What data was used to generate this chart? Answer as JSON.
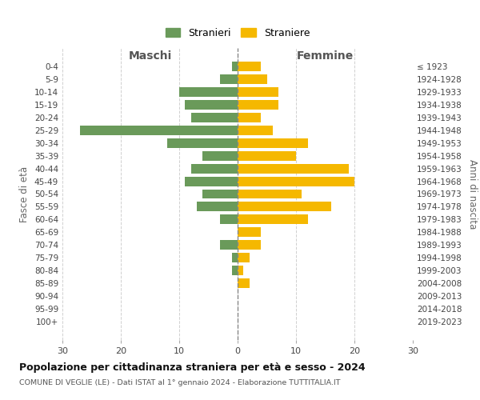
{
  "age_groups": [
    "0-4",
    "5-9",
    "10-14",
    "15-19",
    "20-24",
    "25-29",
    "30-34",
    "35-39",
    "40-44",
    "45-49",
    "50-54",
    "55-59",
    "60-64",
    "65-69",
    "70-74",
    "75-79",
    "80-84",
    "85-89",
    "90-94",
    "95-99",
    "100+"
  ],
  "birth_years": [
    "2019-2023",
    "2014-2018",
    "2009-2013",
    "2004-2008",
    "1999-2003",
    "1994-1998",
    "1989-1993",
    "1984-1988",
    "1979-1983",
    "1974-1978",
    "1969-1973",
    "1964-1968",
    "1959-1963",
    "1954-1958",
    "1949-1953",
    "1944-1948",
    "1939-1943",
    "1934-1938",
    "1929-1933",
    "1924-1928",
    "≤ 1923"
  ],
  "maschi": [
    1,
    3,
    10,
    9,
    8,
    27,
    12,
    6,
    8,
    9,
    6,
    7,
    3,
    0,
    3,
    1,
    1,
    0,
    0,
    0,
    0
  ],
  "femmine": [
    4,
    5,
    7,
    7,
    4,
    6,
    12,
    10,
    19,
    20,
    11,
    16,
    12,
    4,
    4,
    2,
    1,
    2,
    0,
    0,
    0
  ],
  "maschi_color": "#6a9a5a",
  "femmine_color": "#f5b800",
  "title": "Popolazione per cittadinanza straniera per età e sesso - 2024",
  "subtitle": "COMUNE DI VEGLIE (LE) - Dati ISTAT al 1° gennaio 2024 - Elaborazione TUTTITALIA.IT",
  "legend_maschi": "Stranieri",
  "legend_femmine": "Straniere",
  "xlabel_left": "Maschi",
  "xlabel_right": "Femmine",
  "ylabel_left": "Fasce di età",
  "ylabel_right": "Anni di nascita",
  "xlim": 30,
  "background_color": "#ffffff",
  "grid_color": "#d0d0d0"
}
